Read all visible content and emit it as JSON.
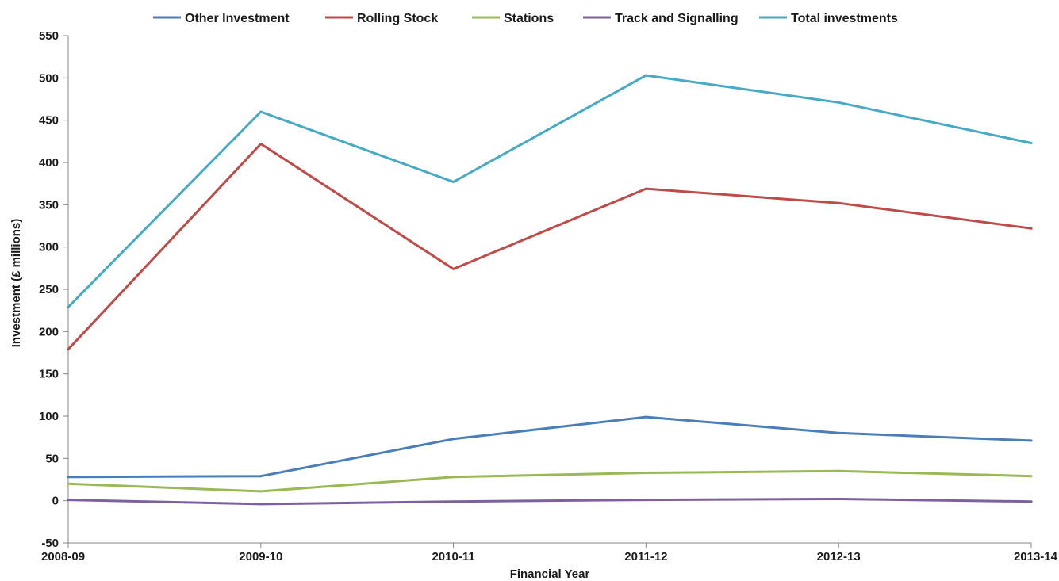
{
  "chart_data": {
    "type": "line",
    "categories": [
      "2008-09",
      "2009-10",
      "2010-11",
      "2011-12",
      "2012-13",
      "2013-14"
    ],
    "series": [
      {
        "name": "Other Investment",
        "color": "#4a7ebb",
        "values": [
          28,
          29,
          73,
          99,
          80,
          71
        ]
      },
      {
        "name": "Rolling Stock",
        "color": "#be4b48",
        "values": [
          179,
          422,
          274,
          369,
          352,
          322
        ]
      },
      {
        "name": "Stations",
        "color": "#98b954",
        "values": [
          20,
          11,
          28,
          33,
          35,
          29
        ]
      },
      {
        "name": "Track and Signalling",
        "color": "#7d60a0",
        "values": [
          1,
          -4,
          -1,
          1,
          2,
          -1
        ]
      },
      {
        "name": "Total investments",
        "color": "#46aac5",
        "values": [
          229,
          460,
          377,
          503,
          471,
          423
        ]
      }
    ],
    "xlabel": "Financial Year",
    "ylabel": "Investment (£ millions)",
    "ylim": [
      -50,
      550
    ],
    "yticks": [
      -50,
      0,
      50,
      100,
      150,
      200,
      250,
      300,
      350,
      400,
      450,
      500,
      550
    ],
    "grid": false,
    "legend_position": "top"
  }
}
